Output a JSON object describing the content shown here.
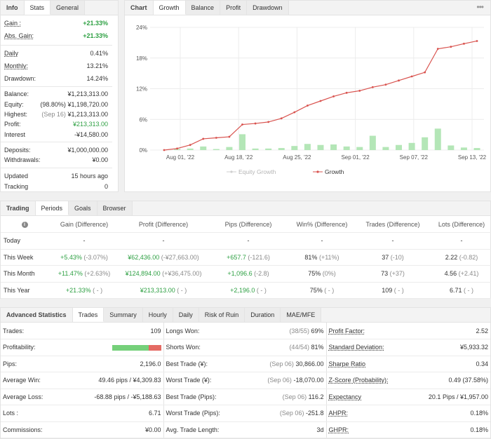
{
  "info": {
    "tabs": [
      "Info",
      "Stats",
      "General"
    ],
    "rows": [
      {
        "label": "Gain :",
        "value": "+21.33%"
      },
      {
        "label": "Abs. Gain:",
        "value": "+21.33%"
      },
      {
        "label": "Daily",
        "value": "0.41%"
      },
      {
        "label": "Monthly:",
        "value": "13.21%"
      },
      {
        "label": "Drawdown:",
        "value": "14.24%"
      },
      {
        "label": "Balance:",
        "value": "¥1,213,313.00"
      },
      {
        "label": "Equity:",
        "note": "(98.80%)",
        "value": "¥1,198,720.00"
      },
      {
        "label": "Highest:",
        "note": "(Sep 16)",
        "value": "¥1,213,313.00"
      },
      {
        "label": "Profit:",
        "value": "¥213,313.00"
      },
      {
        "label": "Interest",
        "value": "-¥14,580.00"
      },
      {
        "label": "Deposits:",
        "value": "¥1,000,000.00"
      },
      {
        "label": "Withdrawals:",
        "value": "¥0.00"
      },
      {
        "label": "Updated",
        "value": "15 hours ago"
      },
      {
        "label": "Tracking",
        "value": "0"
      }
    ]
  },
  "chart": {
    "tabs": [
      "Chart",
      "Growth",
      "Balance",
      "Profit",
      "Drawdown"
    ],
    "menu_icon": "ellipsis-icon",
    "legend": [
      "Equity Growth",
      "Growth"
    ],
    "colors": {
      "line": "#d9534f",
      "bar": "#b4e6b7",
      "grid": "#ececec"
    }
  },
  "chart_data": {
    "type": "line",
    "y_ticks": [
      "0%",
      "6%",
      "12%",
      "18%",
      "24%"
    ],
    "ylim": [
      0,
      24
    ],
    "x_ticks": [
      "Aug 01, '22",
      "Aug 18, '22",
      "Aug 25, '22",
      "Sep 01, '22",
      "Sep 07, '22",
      "Sep 13, '22"
    ],
    "series": [
      {
        "name": "Growth",
        "values": [
          0,
          0.3,
          1.0,
          2.2,
          2.4,
          2.6,
          5.0,
          5.2,
          5.5,
          6.2,
          7.4,
          8.7,
          9.6,
          10.5,
          11.2,
          11.6,
          12.3,
          12.8,
          13.6,
          14.4,
          15.2,
          19.8,
          20.2,
          20.8,
          21.33
        ]
      },
      {
        "name": "Daily",
        "type": "bar",
        "values": [
          0,
          0.2,
          0.3,
          0.7,
          0.2,
          0.6,
          3.1,
          0.3,
          0.3,
          0.4,
          0.8,
          1.2,
          1.0,
          1.1,
          0.7,
          0.6,
          2.8,
          0.6,
          1.0,
          1.4,
          2.5,
          4.2,
          0.9,
          0.5,
          0.4
        ]
      }
    ]
  },
  "trading": {
    "tabs": [
      "Trading",
      "Periods",
      "Goals",
      "Browser"
    ],
    "info_icon": "info-icon",
    "headers": [
      "",
      "Gain (Difference)",
      "Profit (Difference)",
      "Pips (Difference)",
      "Win% (Difference)",
      "Trades (Difference)",
      "Lots (Difference)"
    ],
    "rows": [
      {
        "label": "Today",
        "gain": "-",
        "gain_diff": "",
        "profit": "-",
        "profit_diff": "",
        "pips": "-",
        "pips_diff": "",
        "win": "-",
        "win_diff": "",
        "trades": "-",
        "trades_diff": "",
        "lots": "-",
        "lots_diff": ""
      },
      {
        "label": "This Week",
        "gain": "+5.43%",
        "gain_diff": "(-3.07%)",
        "profit": "¥62,436.00",
        "profit_diff": "(-¥27,663.00)",
        "pips": "+657.7",
        "pips_diff": "(-121.6)",
        "win": "81%",
        "win_diff": "(+11%)",
        "trades": "37",
        "trades_diff": "(-10)",
        "lots": "2.22",
        "lots_diff": "(-0.82)"
      },
      {
        "label": "This Month",
        "gain": "+11.47%",
        "gain_diff": "(+2.63%)",
        "profit": "¥124,894.00",
        "profit_diff": "(+¥36,475.00)",
        "pips": "+1,096.6",
        "pips_diff": "(-2.8)",
        "win": "75%",
        "win_diff": "(0%)",
        "trades": "73",
        "trades_diff": "(+37)",
        "lots": "4.56",
        "lots_diff": "(+2.41)"
      },
      {
        "label": "This Year",
        "gain": "+21.33%",
        "gain_diff": "( - )",
        "profit": "¥213,313.00",
        "profit_diff": "( - )",
        "pips": "+2,196.0",
        "pips_diff": "( - )",
        "win": "75%",
        "win_diff": "( - )",
        "trades": "109",
        "trades_diff": "( - )",
        "lots": "6.71",
        "lots_diff": "( - )"
      }
    ]
  },
  "advanced": {
    "tabs": [
      "Advanced Statistics",
      "Trades",
      "Summary",
      "Hourly",
      "Daily",
      "Risk of Ruin",
      "Duration",
      "MAE/MFE"
    ],
    "profitability": {
      "win_pct": 75,
      "loss_pct": 25
    },
    "rows": [
      {
        "c1l": "Trades:",
        "c1v": "109",
        "c2l": "Longs Won:",
        "c2n": "(38/55)",
        "c2v": "69%",
        "c3l": "Profit Factor:",
        "c3v": "2.52"
      },
      {
        "c1l": "Profitability:",
        "c1v": "",
        "c2l": "Shorts Won:",
        "c2n": "(44/54)",
        "c2v": "81%",
        "c3l": "Standard Deviation:",
        "c3v": "¥5,933.32"
      },
      {
        "c1l": "Pips:",
        "c1v": "2,196.0",
        "c2l": "Best Trade (¥):",
        "c2n": "(Sep 06)",
        "c2v": "30,866.00",
        "c3l": "Sharpe Ratio",
        "c3v": "0.34"
      },
      {
        "c1l": "Average Win:",
        "c1v": "49.46 pips / ¥4,309.83",
        "c2l": "Worst Trade (¥):",
        "c2n": "(Sep 06)",
        "c2v": "-18,070.00",
        "c3l": "Z-Score (Probability):",
        "c3v": "0.49 (37.58%)"
      },
      {
        "c1l": "Average Loss:",
        "c1v": "-68.88 pips / -¥5,188.63",
        "c2l": "Best Trade (Pips):",
        "c2n": "(Sep 06)",
        "c2v": "116.2",
        "c3l": "Expectancy",
        "c3v": "20.1 Pips / ¥1,957.00"
      },
      {
        "c1l": "Lots :",
        "c1v": "6.71",
        "c2l": "Worst Trade (Pips):",
        "c2n": "(Sep 06)",
        "c2v": "-251.8",
        "c3l": "AHPR:",
        "c3v": "0.18%"
      },
      {
        "c1l": "Commissions:",
        "c1v": "¥0.00",
        "c2l": "Avg. Trade Length:",
        "c2n": "",
        "c2v": "3d",
        "c3l": "GHPR:",
        "c3v": "0.18%"
      }
    ]
  }
}
